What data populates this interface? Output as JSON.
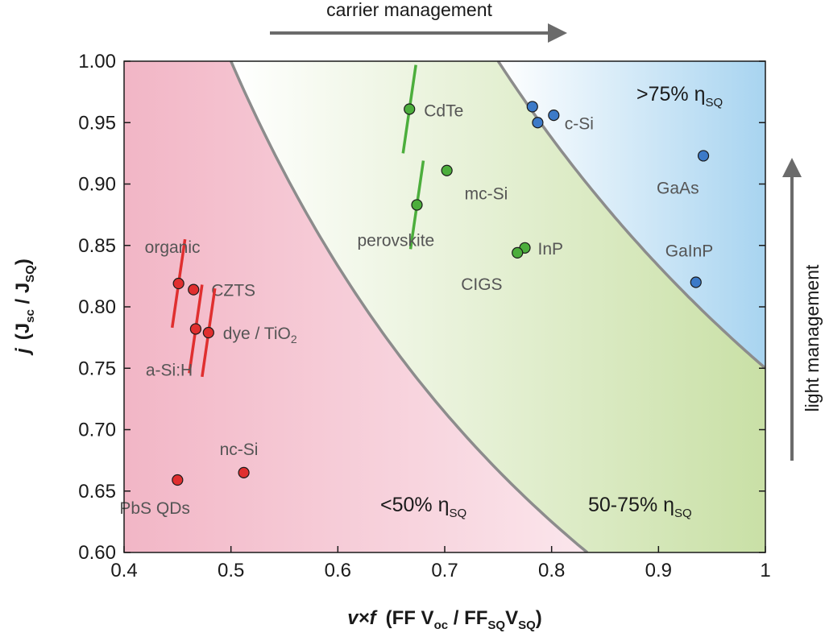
{
  "chart_data": {
    "type": "scatter",
    "xlim": [
      0.4,
      1.0
    ],
    "ylim": [
      0.6,
      1.0
    ],
    "x_ticks": [
      "0.4",
      "0.5",
      "0.6",
      "0.7",
      "0.8",
      "0.9",
      "1"
    ],
    "y_ticks": [
      "0.60",
      "0.65",
      "0.70",
      "0.75",
      "0.80",
      "0.85",
      "0.90",
      "0.95",
      "1.00"
    ],
    "xlabel": {
      "main": "v×f",
      "formula": "FF V",
      "sub1": "oc",
      "mid": " / FF",
      "sub2": "SQ",
      "mid2": "V",
      "sub3": "SQ",
      "close": ")",
      "open": "("
    },
    "ylabel": {
      "main": "j",
      "open": "(J",
      "sub1": "sc",
      "mid": " / J",
      "sub2": "SQ",
      "close": ")"
    },
    "top_arrow_label": "carrier management",
    "right_arrow_label": "light management",
    "regions": [
      {
        "name": "<50% η",
        "sub": "SQ",
        "color": "#f2b6c6",
        "efficiency_product": 0.5
      },
      {
        "name": "50-75% η",
        "sub": "SQ",
        "color": "#d6e8b8",
        "efficiency_product": 0.75
      },
      {
        "name": ">75% η",
        "sub": "SQ",
        "color": "#bcdcf2"
      }
    ],
    "series": [
      {
        "group": "low",
        "color": "#e02f2f",
        "points": [
          {
            "label": "organic",
            "x": 0.451,
            "y": 0.819,
            "slope": -6
          },
          {
            "label": "CZTS",
            "x": 0.465,
            "y": 0.814,
            "slope": null
          },
          {
            "label": "a-Si:H",
            "x": 0.467,
            "y": 0.782,
            "slope": -6
          },
          {
            "label": "dye / TiO",
            "label_sub": "2",
            "x": 0.479,
            "y": 0.779,
            "slope": -6
          },
          {
            "label": "nc-Si",
            "x": 0.512,
            "y": 0.665,
            "slope": null
          },
          {
            "label": "PbS QDs",
            "x": 0.45,
            "y": 0.659,
            "slope": null
          }
        ]
      },
      {
        "group": "mid",
        "color": "#4cae3c",
        "points": [
          {
            "label": "CdTe",
            "x": 0.667,
            "y": 0.961,
            "slope": -6
          },
          {
            "label": "mc-Si",
            "x": 0.702,
            "y": 0.911,
            "slope": null
          },
          {
            "label": "perovskite",
            "x": 0.674,
            "y": 0.883,
            "slope": -6
          },
          {
            "label": "InP",
            "x": 0.775,
            "y": 0.848,
            "slope": null
          },
          {
            "label": "CIGS",
            "x": 0.768,
            "y": 0.844,
            "slope": null
          }
        ]
      },
      {
        "group": "high",
        "color": "#3c7ac8",
        "points": [
          {
            "label": "c-Si",
            "x": 0.782,
            "y": 0.963,
            "slope": null
          },
          {
            "label": "",
            "x": 0.787,
            "y": 0.95,
            "slope": null
          },
          {
            "label": "",
            "x": 0.802,
            "y": 0.956,
            "slope": null
          },
          {
            "label": "GaAs",
            "x": 0.942,
            "y": 0.923,
            "slope": null
          },
          {
            "label": "GaInP",
            "x": 0.935,
            "y": 0.82,
            "slope": null
          }
        ]
      }
    ]
  }
}
